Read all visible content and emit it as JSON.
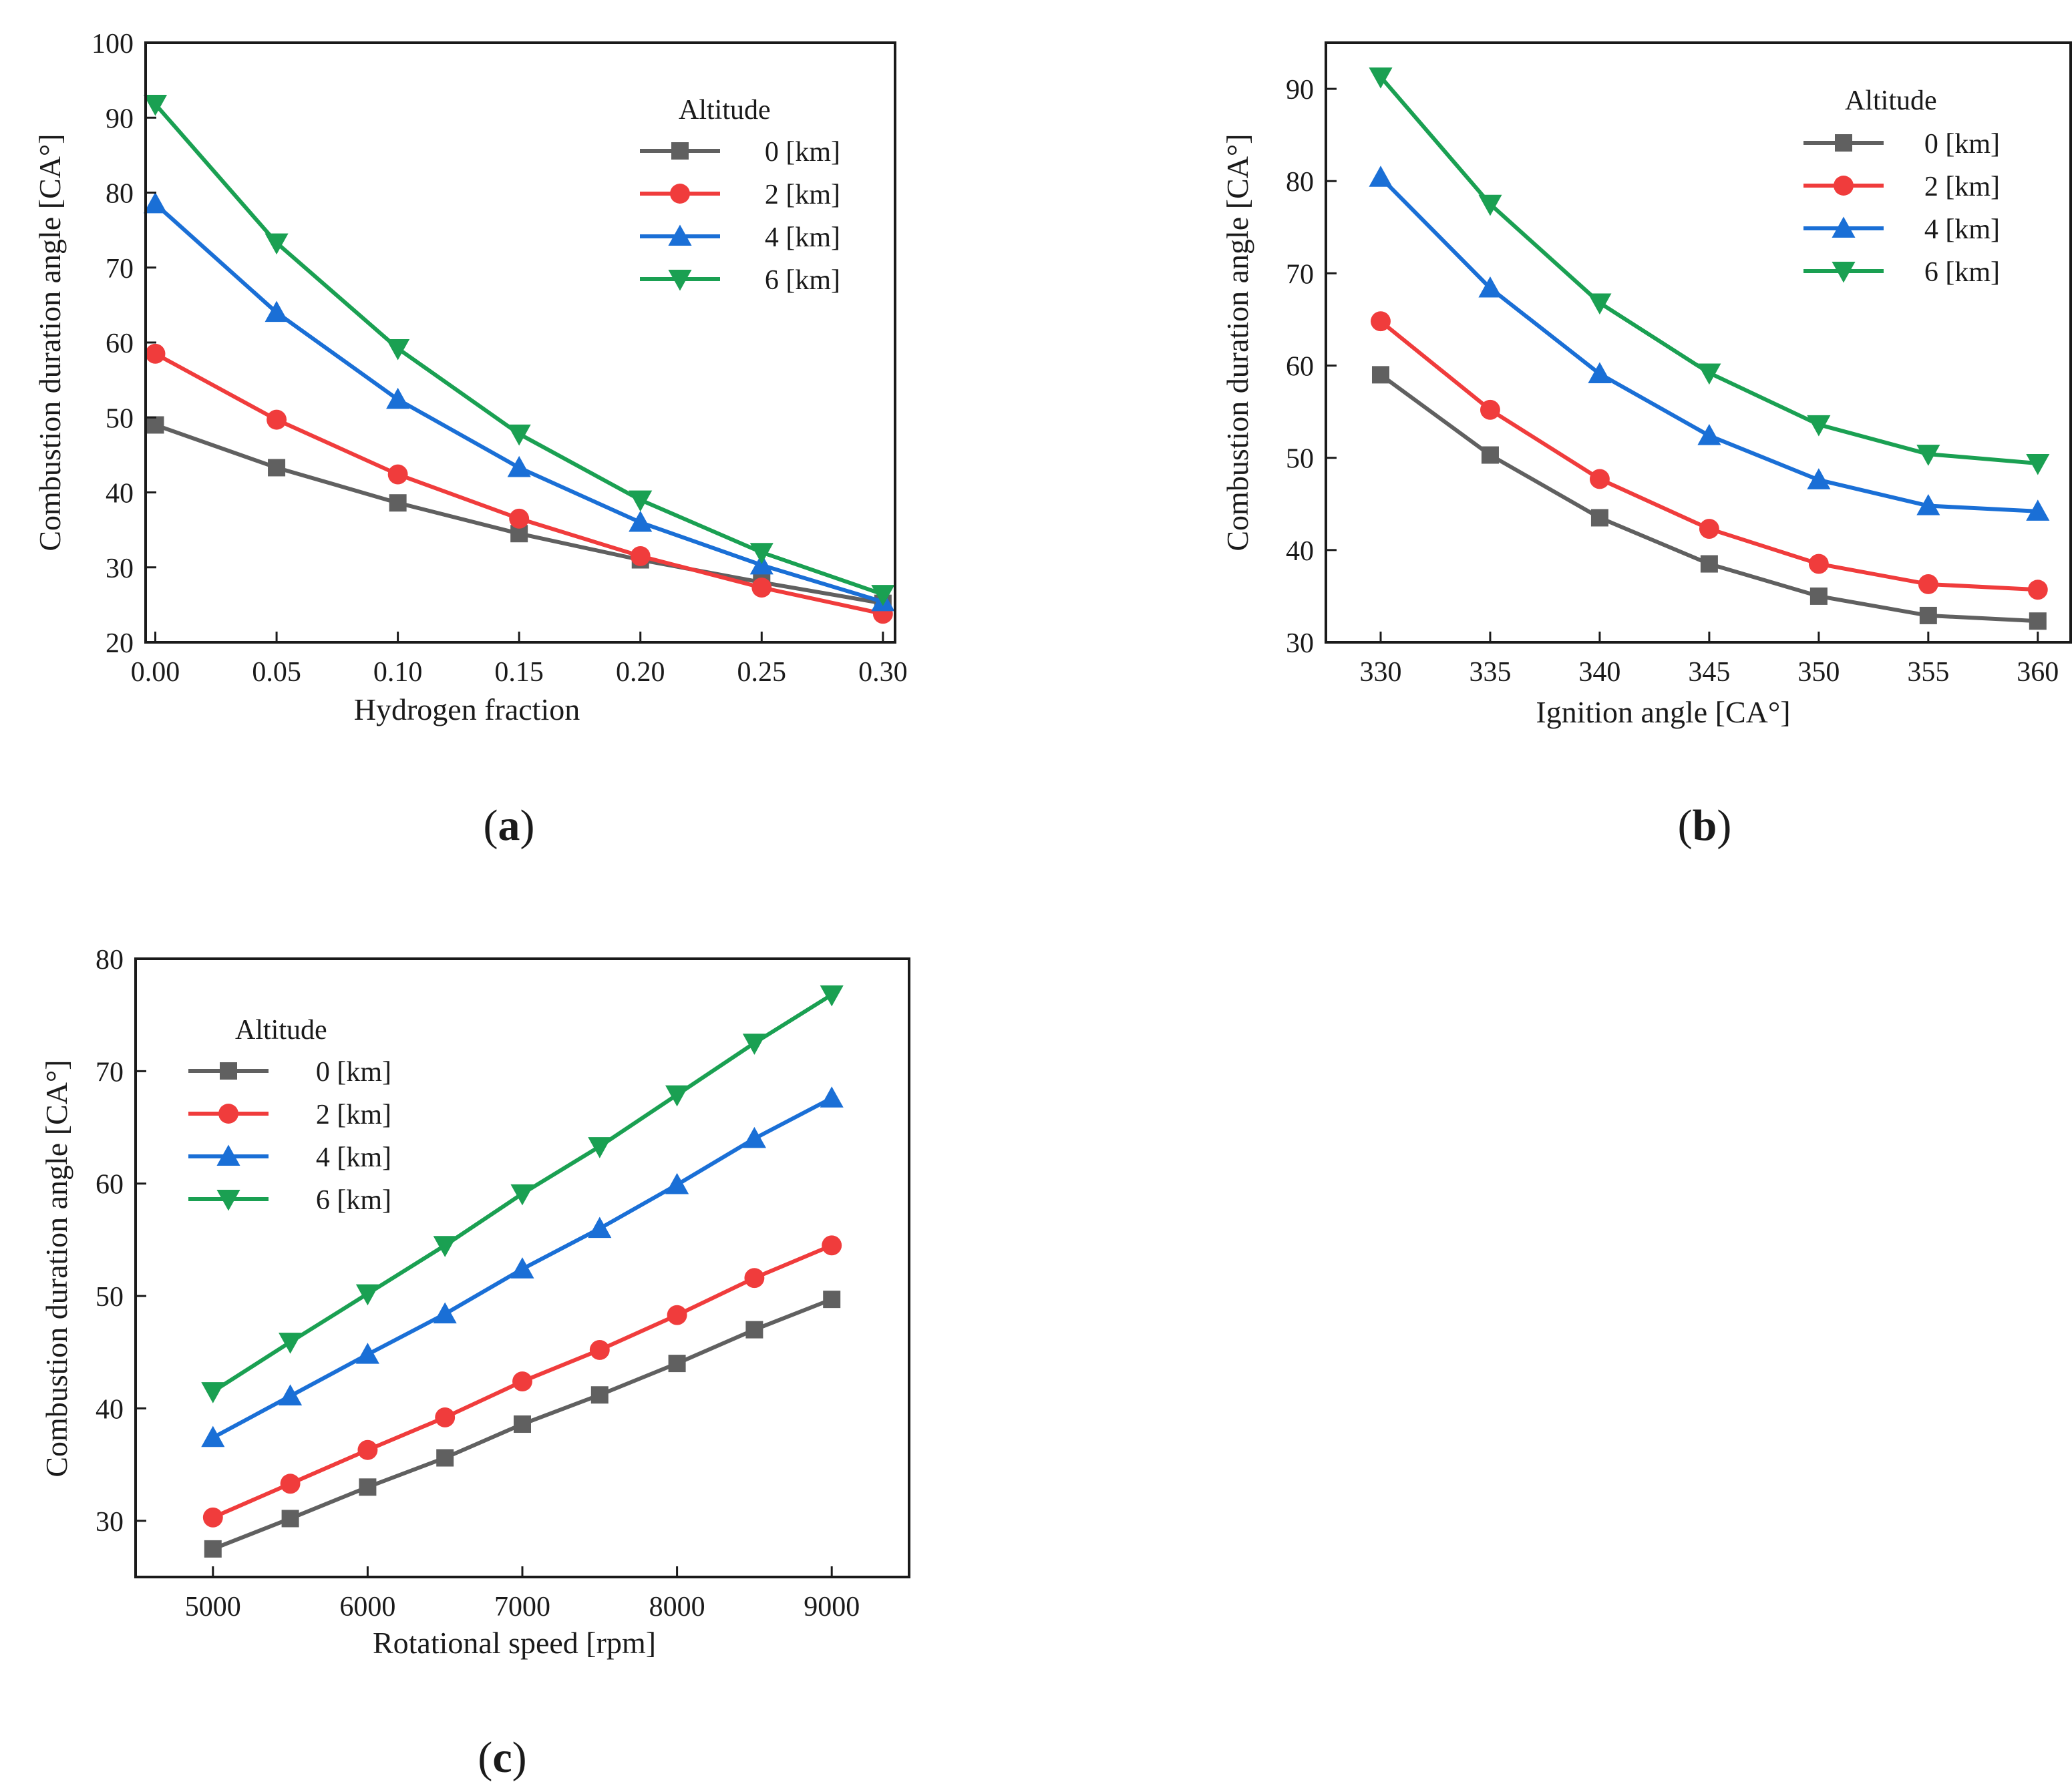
{
  "figure": {
    "panel_labels": [
      {
        "open": "(",
        "letter": "a",
        "close": ")"
      },
      {
        "open": "(",
        "letter": "b",
        "close": ")"
      },
      {
        "open": "(",
        "letter": "c",
        "close": ")"
      }
    ]
  },
  "chart_data": [
    {
      "type": "line",
      "panel": "a",
      "title": "",
      "xlabel": "Hydrogen fraction",
      "ylabel": "Combustion duration angle [CA°]",
      "x": [
        0.0,
        0.05,
        0.1,
        0.15,
        0.2,
        0.25,
        0.3
      ],
      "x_tick_labels": [
        "0.00",
        "0.05",
        "0.10",
        "0.15",
        "0.20",
        "0.25",
        "0.30"
      ],
      "xlim": [
        -0.004,
        0.305
      ],
      "y_ticks": [
        20,
        30,
        40,
        50,
        60,
        70,
        80,
        90,
        100
      ],
      "ylim": [
        20,
        100
      ],
      "legend": {
        "title": "Altitude",
        "placement": "top-right"
      },
      "series": [
        {
          "name": "0 [km]",
          "color": "#606060",
          "marker": "square",
          "values": [
            49.0,
            43.3,
            38.6,
            34.5,
            31.0,
            28.0,
            25.2
          ]
        },
        {
          "name": "2 [km]",
          "color": "#f03c3c",
          "marker": "circle",
          "values": [
            58.5,
            49.7,
            42.4,
            36.5,
            31.5,
            27.3,
            23.8
          ]
        },
        {
          "name": "4 [km]",
          "color": "#1a6fd6",
          "marker": "triangle-up",
          "values": [
            78.5,
            64.0,
            52.4,
            43.3,
            36.0,
            30.3,
            25.4
          ]
        },
        {
          "name": "6 [km]",
          "color": "#1aa052",
          "marker": "triangle-down",
          "values": [
            91.8,
            73.3,
            59.2,
            47.8,
            39.0,
            32.0,
            26.4
          ]
        }
      ]
    },
    {
      "type": "line",
      "panel": "b",
      "title": "",
      "xlabel": "Ignition angle [CA°]",
      "ylabel": "Combustion duration angle [CA°]",
      "x": [
        330,
        335,
        340,
        345,
        350,
        355,
        360
      ],
      "x_tick_labels": [
        "330",
        "335",
        "340",
        "345",
        "350",
        "355",
        "360"
      ],
      "xlim": [
        327.5,
        361.5
      ],
      "y_ticks": [
        30,
        40,
        50,
        60,
        70,
        80,
        90
      ],
      "ylim": [
        30,
        95
      ],
      "legend": {
        "title": "Altitude",
        "placement": "top-right"
      },
      "series": [
        {
          "name": "0 [km]",
          "color": "#606060",
          "marker": "square",
          "values": [
            59.0,
            50.3,
            43.5,
            38.5,
            35.0,
            32.9,
            32.3
          ]
        },
        {
          "name": "2 [km]",
          "color": "#f03c3c",
          "marker": "circle",
          "values": [
            64.8,
            55.2,
            47.7,
            42.3,
            38.5,
            36.3,
            35.7
          ]
        },
        {
          "name": "4 [km]",
          "color": "#1a6fd6",
          "marker": "triangle-up",
          "values": [
            80.4,
            68.4,
            59.1,
            52.4,
            47.6,
            44.8,
            44.2
          ]
        },
        {
          "name": "6 [km]",
          "color": "#1aa052",
          "marker": "triangle-down",
          "values": [
            91.3,
            77.5,
            66.8,
            59.2,
            53.6,
            50.4,
            49.4
          ]
        }
      ]
    },
    {
      "type": "line",
      "panel": "c",
      "title": "",
      "xlabel": "Rotational speed [rpm]",
      "ylabel": "Combustion duration angle [CA°]",
      "x": [
        5000,
        5500,
        6000,
        6500,
        7000,
        7500,
        8000,
        8500,
        9000
      ],
      "x_tick_labels": [
        "5000",
        "6000",
        "7000",
        "8000",
        "9000"
      ],
      "x_tick_values": [
        5000,
        6000,
        7000,
        8000,
        9000
      ],
      "xlim": [
        4500,
        9500
      ],
      "y_ticks": [
        30,
        40,
        50,
        60,
        70,
        80
      ],
      "ylim": [
        25,
        80
      ],
      "legend": {
        "title": "Altitude",
        "placement": "top-left"
      },
      "series": [
        {
          "name": "0 [km]",
          "color": "#606060",
          "marker": "square",
          "values": [
            27.5,
            30.2,
            33.0,
            35.6,
            38.6,
            41.2,
            44.0,
            47.0,
            49.7
          ]
        },
        {
          "name": "2 [km]",
          "color": "#f03c3c",
          "marker": "circle",
          "values": [
            30.3,
            33.3,
            36.3,
            39.2,
            42.4,
            45.2,
            48.3,
            51.6,
            54.5
          ]
        },
        {
          "name": "4 [km]",
          "color": "#1a6fd6",
          "marker": "triangle-up",
          "values": [
            37.4,
            41.1,
            44.8,
            48.4,
            52.4,
            56.0,
            59.9,
            64.0,
            67.6
          ]
        },
        {
          "name": "6 [km]",
          "color": "#1aa052",
          "marker": "triangle-down",
          "values": [
            41.5,
            45.9,
            50.2,
            54.5,
            59.1,
            63.3,
            67.9,
            72.5,
            76.8
          ]
        }
      ]
    }
  ]
}
